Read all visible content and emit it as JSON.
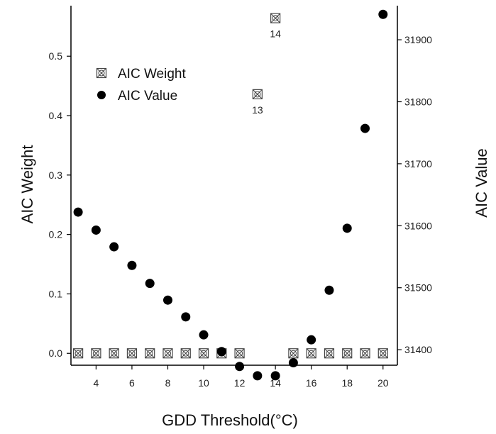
{
  "chart_data": {
    "type": "scatter",
    "xlabel": "GDD Threshold(°C)",
    "ylabel_left": "AIC Weight",
    "ylabel_right": "AIC Value",
    "xlim": [
      2.6,
      20.8
    ],
    "xticks": [
      4,
      6,
      8,
      10,
      12,
      14,
      16,
      18,
      20
    ],
    "ylim_left": [
      -0.02,
      0.585
    ],
    "yticks_left": [
      0.0,
      0.1,
      0.2,
      0.3,
      0.4,
      0.5
    ],
    "yticks_left_labels": [
      "0.0",
      "0.1",
      "0.2",
      "0.3",
      "0.4",
      "0.5"
    ],
    "ylim_right": [
      31375,
      31955
    ],
    "yticks_right": [
      31400,
      31500,
      31600,
      31700,
      31800,
      31900
    ],
    "yticks_right_labels": [
      "31400",
      "31500",
      "31600",
      "31700",
      "31800",
      "31900"
    ],
    "legend_position": "top-left",
    "grid": false,
    "series": [
      {
        "name": "AIC Weight",
        "axis": "left",
        "marker": "crossed-square",
        "x": [
          3,
          4,
          5,
          6,
          7,
          8,
          9,
          10,
          11,
          12,
          13,
          14,
          15,
          16,
          17,
          18,
          19,
          20
        ],
        "y": [
          0,
          0,
          0,
          0,
          0,
          0,
          0,
          0,
          0,
          0,
          0.436,
          0.564,
          0,
          0,
          0,
          0,
          0,
          0
        ]
      },
      {
        "name": "AIC Value",
        "axis": "right",
        "marker": "filled-circle",
        "x": [
          3,
          4,
          5,
          6,
          7,
          8,
          9,
          10,
          11,
          12,
          13,
          14,
          15,
          16,
          17,
          18,
          19,
          20
        ],
        "y": [
          31622,
          31593,
          31566,
          31536,
          31507,
          31480,
          31453,
          31424,
          31397,
          31373,
          31358,
          31358,
          31379,
          31416,
          31496,
          31596,
          31757,
          31941
        ]
      }
    ],
    "annotations": [
      {
        "text": "13",
        "x": 13,
        "y": 0.436,
        "axis": "left"
      },
      {
        "text": "14",
        "x": 14,
        "y": 0.564,
        "axis": "left"
      }
    ]
  }
}
